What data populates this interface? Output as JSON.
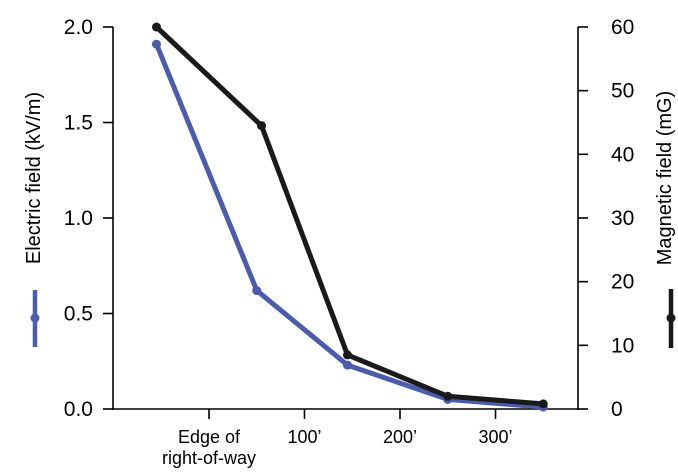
{
  "chart_data": {
    "type": "line",
    "categories": [
      "Edge of right-of-way",
      "100’",
      "200’",
      "300’"
    ],
    "x_tick_labels": [
      {
        "lines": [
          "Edge of",
          "right-of-way"
        ]
      },
      {
        "lines": [
          "100’"
        ]
      },
      {
        "lines": [
          "200’"
        ]
      },
      {
        "lines": [
          "300’"
        ]
      }
    ],
    "left_axis": {
      "label": "Electric field (kV/m)",
      "ylim": [
        0,
        2.0
      ],
      "ticks": [
        "0.0",
        "0.5",
        "1.0",
        "1.5",
        "2.0"
      ],
      "tick_values": [
        0,
        0.5,
        1.0,
        1.5,
        2.0
      ]
    },
    "right_axis": {
      "label": "Magnetic field (mG)",
      "ylim": [
        0,
        60
      ],
      "ticks": [
        "0",
        "10",
        "20",
        "30",
        "40",
        "50",
        "60"
      ],
      "tick_values": [
        0,
        10,
        20,
        30,
        40,
        50,
        60
      ]
    },
    "series": [
      {
        "axis": "left",
        "color": "#4a5cab",
        "x": [
          -0.55,
          0.5,
          1.45,
          2.5,
          3.5
        ],
        "values": [
          1.91,
          0.62,
          0.23,
          0.05,
          0.01
        ]
      },
      {
        "axis": "right",
        "color": "#1a1a1a",
        "x": [
          -0.55,
          0.55,
          1.45,
          2.5,
          3.5
        ],
        "values": [
          60,
          44.5,
          8.5,
          2.0,
          0.8
        ]
      }
    ],
    "grid": false,
    "legend": "axis-label markers"
  }
}
